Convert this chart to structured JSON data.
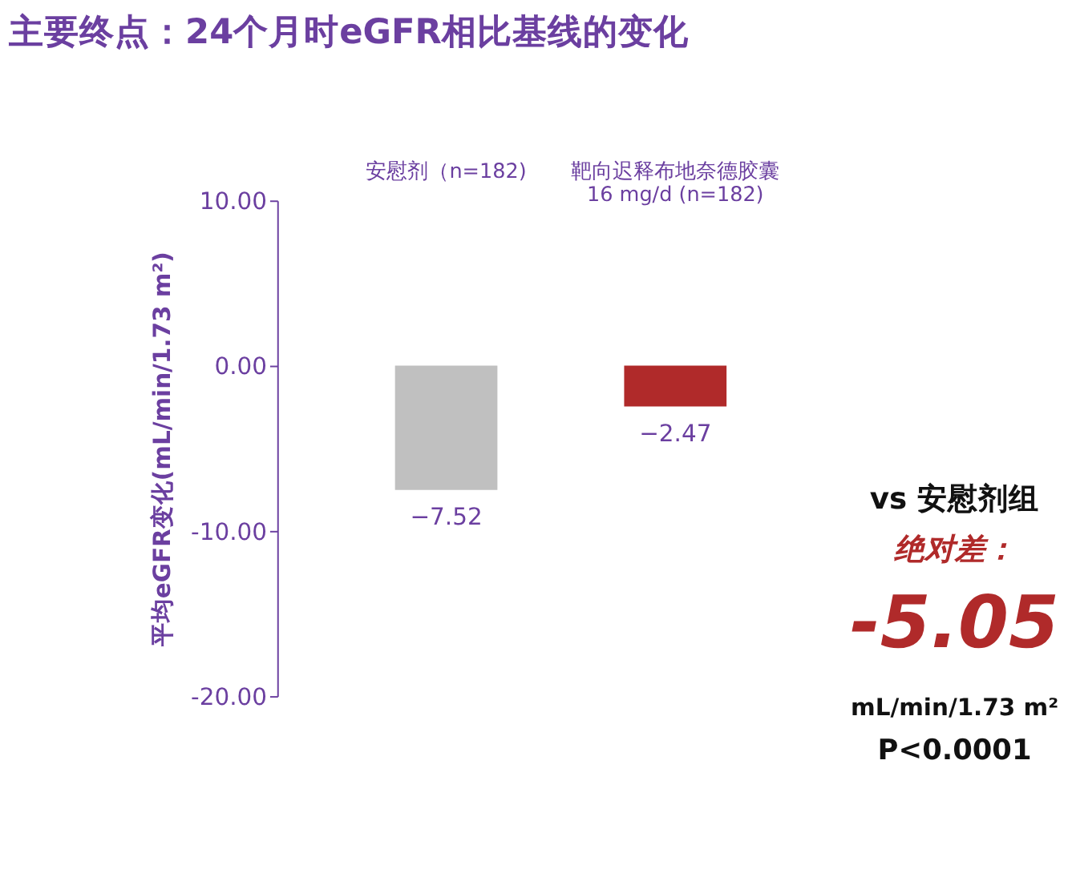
{
  "chart_data": {
    "type": "bar",
    "title": "主要终点：24个月时eGFR相比基线的变化",
    "ylabel": "平均eGFR变化(mL/min/1.73 m²)",
    "categories": [
      "安慰剂（n=182)",
      "靶向迟释布地奈德胶囊 16 mg/d (n=182)"
    ],
    "values": [
      -7.52,
      -2.47
    ],
    "colors": [
      "#c0c0c0",
      "#b02a2a"
    ],
    "data_labels": true,
    "ylim": [
      -20,
      10
    ],
    "yticks": [
      {
        "value": -20,
        "label": "-20.00"
      },
      {
        "value": -10,
        "label": "-10.00"
      },
      {
        "value": 0,
        "label": "0.00"
      },
      {
        "value": 10,
        "label": "10.00"
      }
    ],
    "grid": false,
    "annotations": [
      "vs 安慰剂组",
      "绝对差：",
      "-5.05",
      "mL/min/1.73 m²",
      "P<0.0001"
    ]
  }
}
